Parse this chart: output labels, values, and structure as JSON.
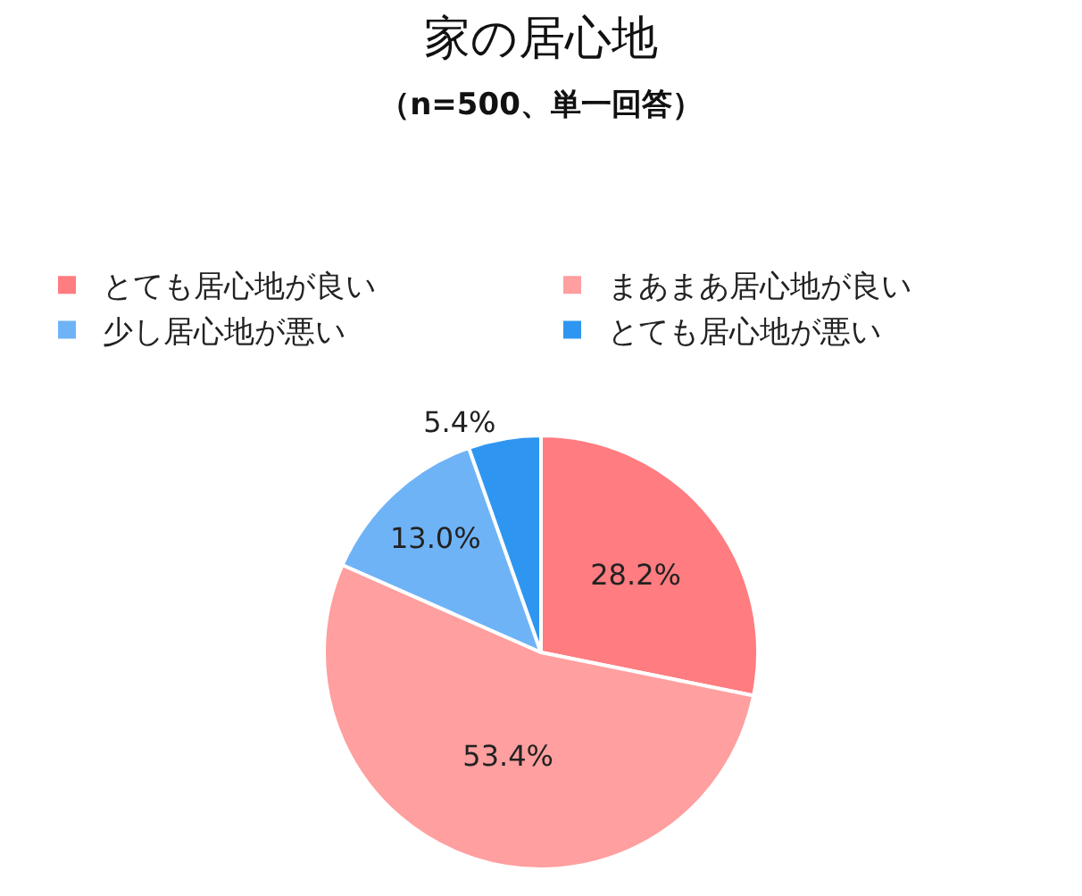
{
  "chart_data": {
    "type": "pie",
    "title": "家の居心地",
    "subtitle": "（n=500、単一回答）",
    "categories": [
      "とても居心地が良い",
      "まあまあ居心地が良い",
      "少し居心地が悪い",
      "とても居心地が悪い"
    ],
    "values": [
      28.2,
      53.4,
      13.0,
      5.4
    ],
    "value_labels": [
      "28.2%",
      "53.4%",
      "13.0%",
      "5.4%"
    ],
    "colors": [
      "#ff7c80",
      "#ff9f9f",
      "#6fb3f7",
      "#2e96f0"
    ],
    "legend": "top"
  }
}
